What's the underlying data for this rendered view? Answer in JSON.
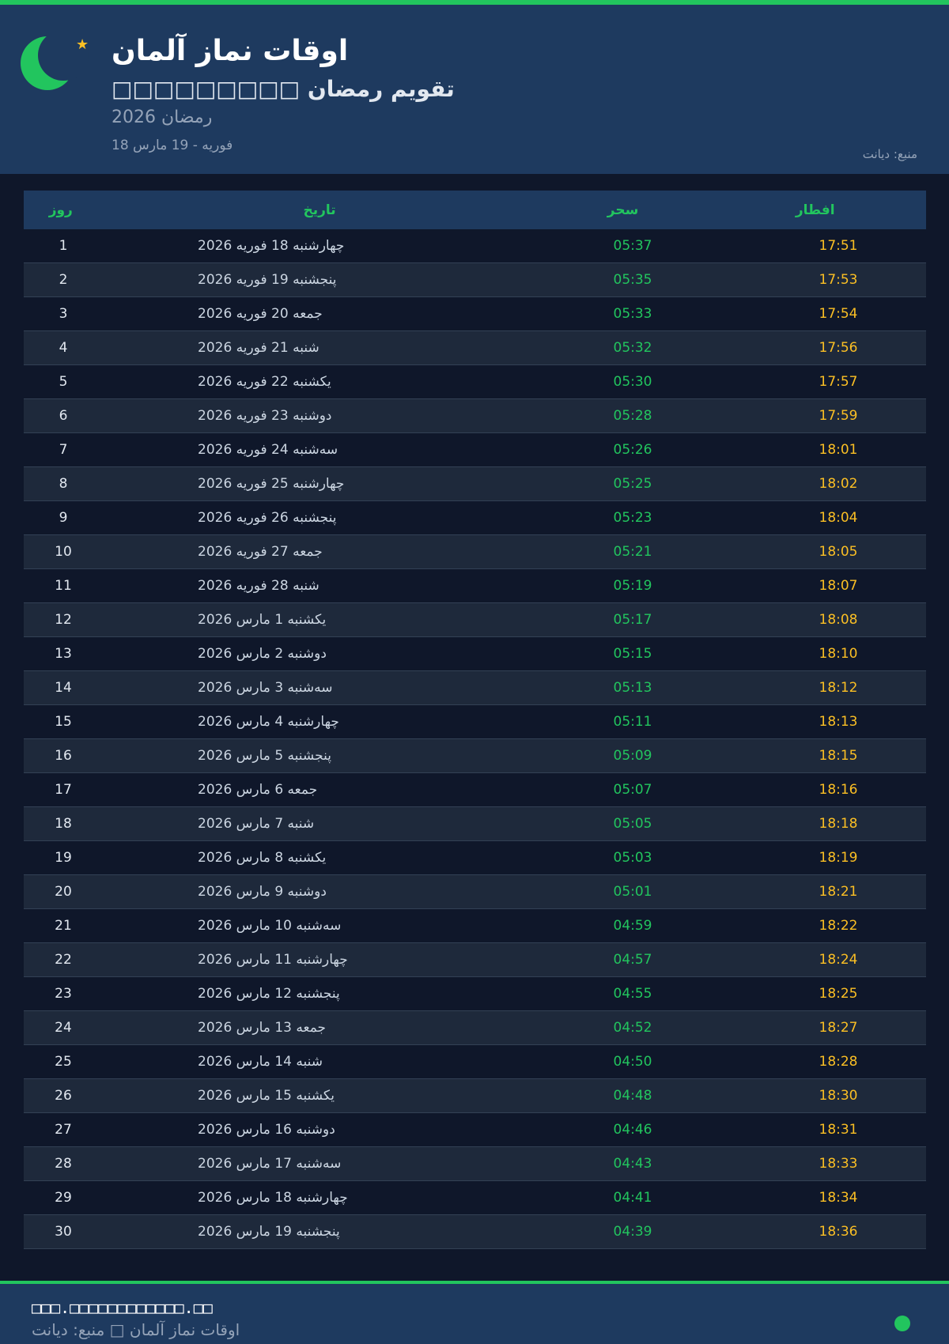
{
  "colors": {
    "accent": "#22c55e",
    "iftar": "#fbbf24",
    "header_bg": "#1e3a5f",
    "body_bg": "#0f172a"
  },
  "header": {
    "title": "اوقات نماز آلمان",
    "subtitle": "□□□□□□□□□ تقویم رمضان",
    "year": "رمضان 2026",
    "range": "18 فوریه - 19 مارس",
    "source": "منبع: دیانت",
    "icons": [
      "crescent-moon-icon",
      "star-icon"
    ]
  },
  "table": {
    "columns": [
      "روز",
      "تاریخ",
      "سحر",
      "افطار"
    ],
    "rows": [
      {
        "day": "1",
        "date": "چهارشنبه 18 فوریه 2026",
        "sahar": "05:37",
        "iftar": "17:51"
      },
      {
        "day": "2",
        "date": "پنجشنبه 19 فوریه 2026",
        "sahar": "05:35",
        "iftar": "17:53"
      },
      {
        "day": "3",
        "date": "جمعه 20 فوریه 2026",
        "sahar": "05:33",
        "iftar": "17:54"
      },
      {
        "day": "4",
        "date": "شنبه 21 فوریه 2026",
        "sahar": "05:32",
        "iftar": "17:56"
      },
      {
        "day": "5",
        "date": "یکشنبه 22 فوریه 2026",
        "sahar": "05:30",
        "iftar": "17:57"
      },
      {
        "day": "6",
        "date": "دوشنبه 23 فوریه 2026",
        "sahar": "05:28",
        "iftar": "17:59"
      },
      {
        "day": "7",
        "date": "سه‌شنبه 24 فوریه 2026",
        "sahar": "05:26",
        "iftar": "18:01"
      },
      {
        "day": "8",
        "date": "چهارشنبه 25 فوریه 2026",
        "sahar": "05:25",
        "iftar": "18:02"
      },
      {
        "day": "9",
        "date": "پنجشنبه 26 فوریه 2026",
        "sahar": "05:23",
        "iftar": "18:04"
      },
      {
        "day": "10",
        "date": "جمعه 27 فوریه 2026",
        "sahar": "05:21",
        "iftar": "18:05"
      },
      {
        "day": "11",
        "date": "شنبه 28 فوریه 2026",
        "sahar": "05:19",
        "iftar": "18:07"
      },
      {
        "day": "12",
        "date": "یکشنبه 1 مارس 2026",
        "sahar": "05:17",
        "iftar": "18:08"
      },
      {
        "day": "13",
        "date": "دوشنبه 2 مارس 2026",
        "sahar": "05:15",
        "iftar": "18:10"
      },
      {
        "day": "14",
        "date": "سه‌شنبه 3 مارس 2026",
        "sahar": "05:13",
        "iftar": "18:12"
      },
      {
        "day": "15",
        "date": "چهارشنبه 4 مارس 2026",
        "sahar": "05:11",
        "iftar": "18:13"
      },
      {
        "day": "16",
        "date": "پنجشنبه 5 مارس 2026",
        "sahar": "05:09",
        "iftar": "18:15"
      },
      {
        "day": "17",
        "date": "جمعه 6 مارس 2026",
        "sahar": "05:07",
        "iftar": "18:16"
      },
      {
        "day": "18",
        "date": "شنبه 7 مارس 2026",
        "sahar": "05:05",
        "iftar": "18:18"
      },
      {
        "day": "19",
        "date": "یکشنبه 8 مارس 2026",
        "sahar": "05:03",
        "iftar": "18:19"
      },
      {
        "day": "20",
        "date": "دوشنبه 9 مارس 2026",
        "sahar": "05:01",
        "iftar": "18:21"
      },
      {
        "day": "21",
        "date": "سه‌شنبه 10 مارس 2026",
        "sahar": "04:59",
        "iftar": "18:22"
      },
      {
        "day": "22",
        "date": "چهارشنبه 11 مارس 2026",
        "sahar": "04:57",
        "iftar": "18:24"
      },
      {
        "day": "23",
        "date": "پنجشنبه 12 مارس 2026",
        "sahar": "04:55",
        "iftar": "18:25"
      },
      {
        "day": "24",
        "date": "جمعه 13 مارس 2026",
        "sahar": "04:52",
        "iftar": "18:27"
      },
      {
        "day": "25",
        "date": "شنبه 14 مارس 2026",
        "sahar": "04:50",
        "iftar": "18:28"
      },
      {
        "day": "26",
        "date": "یکشنبه 15 مارس 2026",
        "sahar": "04:48",
        "iftar": "18:30"
      },
      {
        "day": "27",
        "date": "دوشنبه 16 مارس 2026",
        "sahar": "04:46",
        "iftar": "18:31"
      },
      {
        "day": "28",
        "date": "سه‌شنبه 17 مارس 2026",
        "sahar": "04:43",
        "iftar": "18:33"
      },
      {
        "day": "29",
        "date": "چهارشنبه 18 مارس 2026",
        "sahar": "04:41",
        "iftar": "18:34"
      },
      {
        "day": "30",
        "date": "پنجشنبه 19 مارس 2026",
        "sahar": "04:39",
        "iftar": "18:36"
      }
    ]
  },
  "footer": {
    "url": "□□□.□□□□□□□□□□□□.□□",
    "text": "اوقات نماز آلمان □ منبع: دیانت"
  }
}
